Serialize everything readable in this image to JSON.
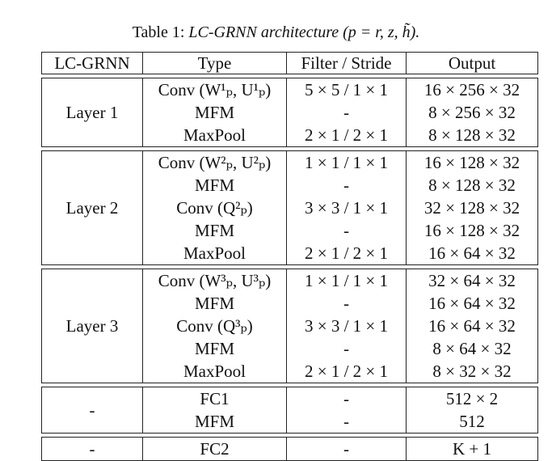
{
  "caption": {
    "label": "Table 1:",
    "text": "LC-GRNN architecture (p = r, z, h̃)."
  },
  "table": {
    "headers": [
      "LC-GRNN",
      "Type",
      "Filter / Stride",
      "Output"
    ],
    "groups": [
      {
        "name": "Layer 1",
        "rows": [
          {
            "type": "Conv (W¹ₚ, U¹ₚ)",
            "filter": "5 × 5 / 1 × 1",
            "output": "16 × 256 × 32"
          },
          {
            "type": "MFM",
            "filter": "-",
            "output": "8 × 256 × 32"
          },
          {
            "type": "MaxPool",
            "filter": "2 × 1 / 2 × 1",
            "output": "8 × 128 × 32"
          }
        ]
      },
      {
        "name": "Layer 2",
        "rows": [
          {
            "type": "Conv (W²ₚ, U²ₚ)",
            "filter": "1 × 1 / 1 × 1",
            "output": "16 × 128 × 32"
          },
          {
            "type": "MFM",
            "filter": "-",
            "output": "8 × 128 × 32"
          },
          {
            "type": "Conv (Q²ₚ)",
            "filter": "3 × 3 / 1 × 1",
            "output": "32 × 128 × 32"
          },
          {
            "type": "MFM",
            "filter": "-",
            "output": "16 × 128 × 32"
          },
          {
            "type": "MaxPool",
            "filter": "2 × 1 / 2 × 1",
            "output": "16 × 64 × 32"
          }
        ]
      },
      {
        "name": "Layer 3",
        "rows": [
          {
            "type": "Conv (W³ₚ, U³ₚ)",
            "filter": "1 × 1 / 1 × 1",
            "output": "32 × 64 × 32"
          },
          {
            "type": "MFM",
            "filter": "-",
            "output": "16 × 64 × 32"
          },
          {
            "type": "Conv (Q³ₚ)",
            "filter": "3 × 3 / 1 × 1",
            "output": "16 × 64 × 32"
          },
          {
            "type": "MFM",
            "filter": "-",
            "output": "8 × 64 × 32"
          },
          {
            "type": "MaxPool",
            "filter": "2 × 1 / 2 × 1",
            "output": "8 × 32 × 32"
          }
        ]
      },
      {
        "name": "-",
        "rows": [
          {
            "type": "FC1",
            "filter": "-",
            "output": "512 × 2"
          },
          {
            "type": "MFM",
            "filter": "-",
            "output": "512"
          }
        ]
      },
      {
        "name": "-",
        "rows": [
          {
            "type": "FC2",
            "filter": "-",
            "output": "K + 1"
          }
        ]
      }
    ]
  }
}
